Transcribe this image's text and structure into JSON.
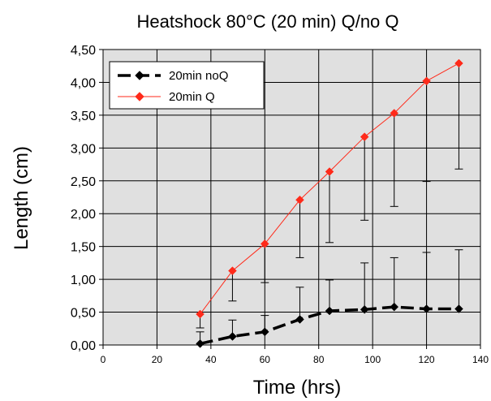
{
  "chart_data": {
    "type": "line",
    "title": "Heatshock 80°C (20 min) Q/no Q",
    "xlabel": "Time (hrs)",
    "ylabel": "Length (cm)",
    "xlim": [
      0,
      140
    ],
    "ylim": [
      0,
      4.5
    ],
    "xticks": [
      0,
      20,
      40,
      60,
      80,
      100,
      120,
      140
    ],
    "xtick_labels": [
      "0",
      "20",
      "40",
      "60",
      "80",
      "100",
      "120",
      "140"
    ],
    "yticks": [
      0,
      0.5,
      1,
      1.5,
      2,
      2.5,
      3,
      3.5,
      4,
      4.5
    ],
    "ytick_labels": [
      "0,00",
      "0,50",
      "1,00",
      "1,50",
      "2,00",
      "2,50",
      "3,00",
      "3,50",
      "4,00",
      "4,50"
    ],
    "grid": true,
    "legend_position": "top-left",
    "series": [
      {
        "name": "20min noQ",
        "color": "#000000",
        "line_style": "dashed",
        "marker": "diamond",
        "x": [
          36,
          48,
          60,
          73,
          84,
          97,
          108,
          120,
          132
        ],
        "y": [
          0.02,
          0.13,
          0.2,
          0.39,
          0.52,
          0.54,
          0.58,
          0.55,
          0.55
        ],
        "error_plus": [
          0.18,
          0.25,
          0.25,
          0.49,
          0.47,
          0.71,
          0.75,
          0.86,
          0.9
        ]
      },
      {
        "name": "20min Q",
        "color": "#ff2a1a",
        "line_style": "solid",
        "marker": "diamond",
        "x": [
          36,
          48,
          60,
          73,
          84,
          97,
          108,
          120,
          132
        ],
        "y": [
          0.47,
          1.13,
          1.54,
          2.21,
          2.64,
          3.17,
          3.53,
          4.02,
          4.29
        ],
        "error_minus": [
          0.21,
          0.46,
          0.59,
          0.88,
          1.08,
          1.27,
          1.42,
          1.53,
          1.61
        ]
      }
    ]
  }
}
